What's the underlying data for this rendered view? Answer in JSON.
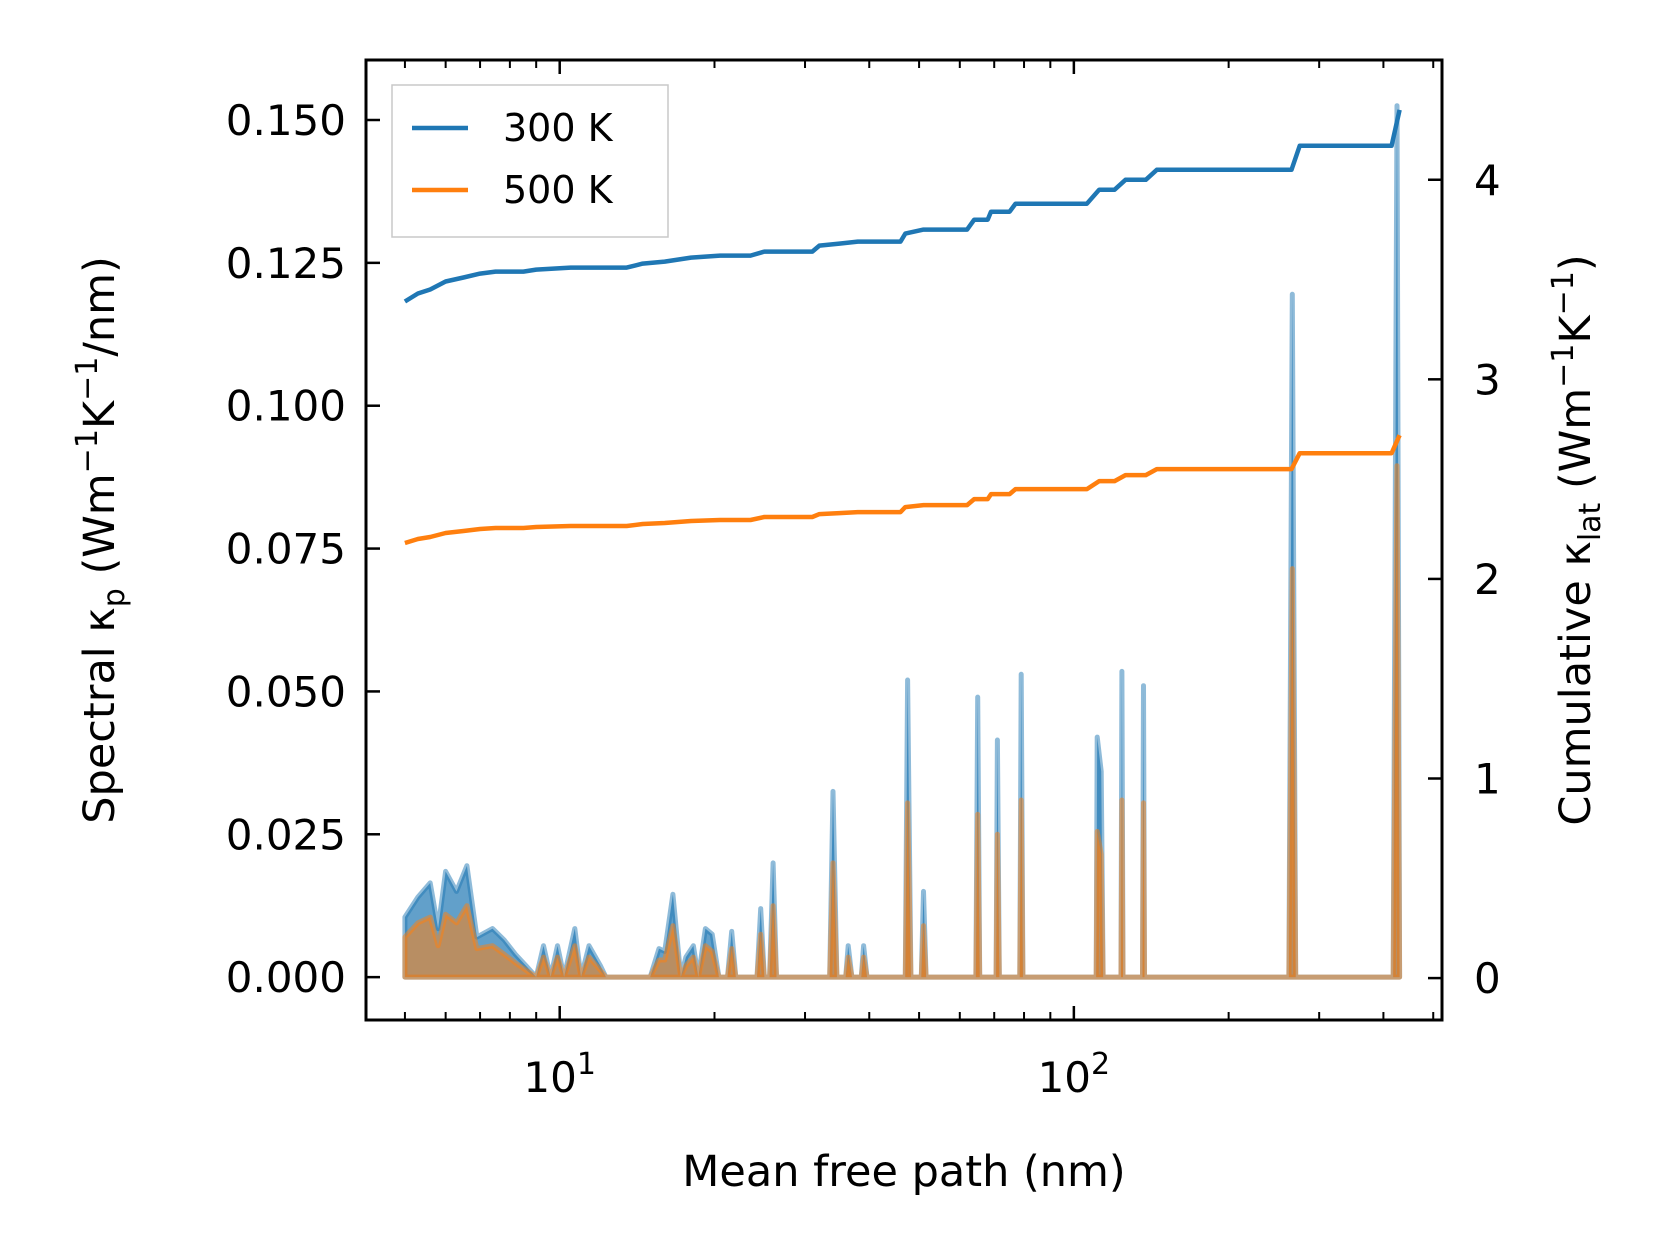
{
  "chart_data": {
    "type": "line",
    "xlabel": "Mean free path (nm)",
    "xscale": "log",
    "xlim": [
      4.2,
      520
    ],
    "ylabel_left": "Spectral κp (Wm−1K−1/nm)",
    "ylabel_left_parts": {
      "pre": "Spectral κ",
      "sub": "p",
      "mid1": " (Wm",
      "sup1": "−1",
      "mid2": "K",
      "sup2": "−1",
      "post": "/nm)"
    },
    "ylim_left": [
      -0.0075,
      0.1605
    ],
    "ylabel_right": "Cumulative κlat (Wm−1K−1)",
    "ylabel_right_parts": {
      "pre": "Cumulative κ",
      "sub": "lat",
      "mid1": " (Wm",
      "sup1": "−1",
      "mid2": "K",
      "sup2": "−1",
      "post": ")"
    },
    "ylim_right": [
      -0.21,
      4.6
    ],
    "left_ticks": [
      {
        "value": 0.0,
        "label": "0.000"
      },
      {
        "value": 0.025,
        "label": "0.025"
      },
      {
        "value": 0.05,
        "label": "0.050"
      },
      {
        "value": 0.075,
        "label": "0.075"
      },
      {
        "value": 0.1,
        "label": "0.100"
      },
      {
        "value": 0.125,
        "label": "0.125"
      },
      {
        "value": 0.15,
        "label": "0.150"
      }
    ],
    "right_ticks": [
      {
        "value": 0,
        "label": "0"
      },
      {
        "value": 1,
        "label": "1"
      },
      {
        "value": 2,
        "label": "2"
      },
      {
        "value": 3,
        "label": "3"
      },
      {
        "value": 4,
        "label": "4"
      }
    ],
    "x_major_ticks": [
      {
        "value": 10,
        "base": "10",
        "exp": "1"
      },
      {
        "value": 100,
        "base": "10",
        "exp": "2"
      }
    ],
    "legend": {
      "position": "top-left",
      "entries": [
        {
          "label": "300 K",
          "color": "#1f77b4"
        },
        {
          "label": "500 K",
          "color": "#ff7f0e"
        }
      ]
    },
    "series": [
      {
        "name": "300 K",
        "color": "#1f77b4",
        "cumulative": [
          [
            5.0,
            3.39
          ],
          [
            5.3,
            3.43
          ],
          [
            5.6,
            3.45
          ],
          [
            6.0,
            3.49
          ],
          [
            6.5,
            3.51
          ],
          [
            7.0,
            3.53
          ],
          [
            7.5,
            3.54
          ],
          [
            8.5,
            3.54
          ],
          [
            9.0,
            3.55
          ],
          [
            10.5,
            3.56
          ],
          [
            13.5,
            3.56
          ],
          [
            14.5,
            3.58
          ],
          [
            16.0,
            3.59
          ],
          [
            18.0,
            3.61
          ],
          [
            20.5,
            3.62
          ],
          [
            23.5,
            3.62
          ],
          [
            25.0,
            3.64
          ],
          [
            31.0,
            3.64
          ],
          [
            32.0,
            3.67
          ],
          [
            35.0,
            3.68
          ],
          [
            38.0,
            3.69
          ],
          [
            46.0,
            3.69
          ],
          [
            47.0,
            3.73
          ],
          [
            51.0,
            3.75
          ],
          [
            62.0,
            3.75
          ],
          [
            64.0,
            3.8
          ],
          [
            68.0,
            3.8
          ],
          [
            69.0,
            3.84
          ],
          [
            75.0,
            3.84
          ],
          [
            77.0,
            3.88
          ],
          [
            106.0,
            3.88
          ],
          [
            112.0,
            3.95
          ],
          [
            120.0,
            3.95
          ],
          [
            126.0,
            4.0
          ],
          [
            138.0,
            4.0
          ],
          [
            145.0,
            4.05
          ],
          [
            265.0,
            4.05
          ],
          [
            275.0,
            4.17
          ],
          [
            415.0,
            4.17
          ],
          [
            430.0,
            4.35
          ]
        ],
        "spectral": [
          [
            5.0,
            0.0105
          ],
          [
            5.3,
            0.014
          ],
          [
            5.6,
            0.0165
          ],
          [
            5.8,
            0.0085
          ],
          [
            6.0,
            0.0185
          ],
          [
            6.3,
            0.015
          ],
          [
            6.6,
            0.0195
          ],
          [
            6.9,
            0.007
          ],
          [
            7.4,
            0.0085
          ],
          [
            7.8,
            0.0065
          ],
          [
            8.2,
            0.004
          ],
          [
            8.6,
            0.002
          ],
          [
            9.0,
            0.0
          ],
          [
            9.3,
            0.0055
          ],
          [
            9.6,
            0.0
          ],
          [
            9.9,
            0.0055
          ],
          [
            10.2,
            0.0
          ],
          [
            10.7,
            0.0085
          ],
          [
            11.0,
            0.0
          ],
          [
            11.4,
            0.0055
          ],
          [
            12.0,
            0.002
          ],
          [
            12.3,
            0.0
          ],
          [
            15.0,
            0.0
          ],
          [
            15.6,
            0.005
          ],
          [
            16.0,
            0.0045
          ],
          [
            16.6,
            0.0145
          ],
          [
            17.2,
            0.0
          ],
          [
            17.6,
            0.0035
          ],
          [
            18.2,
            0.0055
          ],
          [
            18.6,
            0.0
          ],
          [
            19.2,
            0.0085
          ],
          [
            19.8,
            0.0075
          ],
          [
            20.4,
            0.0
          ],
          [
            21.2,
            0.0
          ],
          [
            21.6,
            0.008
          ],
          [
            22.0,
            0.0
          ],
          [
            24.2,
            0.0
          ],
          [
            24.6,
            0.012
          ],
          [
            25.0,
            0.0
          ],
          [
            25.6,
            0.0
          ],
          [
            26.0,
            0.02
          ],
          [
            26.4,
            0.0
          ],
          [
            33.5,
            0.0
          ],
          [
            34.0,
            0.0325
          ],
          [
            34.6,
            0.0
          ],
          [
            36.0,
            0.0
          ],
          [
            36.4,
            0.0055
          ],
          [
            37.0,
            0.0
          ],
          [
            38.6,
            0.0
          ],
          [
            39.0,
            0.0055
          ],
          [
            39.6,
            0.0
          ],
          [
            47.0,
            0.0
          ],
          [
            47.5,
            0.052
          ],
          [
            48.2,
            0.0
          ],
          [
            50.5,
            0.0
          ],
          [
            51.0,
            0.015
          ],
          [
            51.6,
            0.0
          ],
          [
            64.5,
            0.0
          ],
          [
            65.0,
            0.049
          ],
          [
            65.6,
            0.0
          ],
          [
            70.6,
            0.0
          ],
          [
            71.0,
            0.0415
          ],
          [
            71.6,
            0.0
          ],
          [
            78.5,
            0.0
          ],
          [
            79.0,
            0.053
          ],
          [
            79.6,
            0.0
          ],
          [
            110.5,
            0.0
          ],
          [
            111.0,
            0.042
          ],
          [
            113.0,
            0.036
          ],
          [
            114.0,
            0.0
          ],
          [
            123.5,
            0.0
          ],
          [
            124.0,
            0.0535
          ],
          [
            124.6,
            0.0
          ],
          [
            136.0,
            0.0
          ],
          [
            136.6,
            0.051
          ],
          [
            137.2,
            0.0
          ],
          [
            262.0,
            0.0
          ],
          [
            266.0,
            0.1195
          ],
          [
            270.0,
            0.0
          ],
          [
            418.0,
            0.0
          ],
          [
            425.0,
            0.1525
          ],
          [
            430.0,
            0.0
          ]
        ]
      },
      {
        "name": "500 K",
        "color": "#ff7f0e",
        "cumulative": [
          [
            5.0,
            2.18
          ],
          [
            5.3,
            2.2
          ],
          [
            5.6,
            2.21
          ],
          [
            6.0,
            2.23
          ],
          [
            6.5,
            2.24
          ],
          [
            7.0,
            2.25
          ],
          [
            7.5,
            2.255
          ],
          [
            8.5,
            2.255
          ],
          [
            9.0,
            2.26
          ],
          [
            10.5,
            2.265
          ],
          [
            13.5,
            2.265
          ],
          [
            14.5,
            2.275
          ],
          [
            16.0,
            2.28
          ],
          [
            18.0,
            2.29
          ],
          [
            20.5,
            2.295
          ],
          [
            23.5,
            2.295
          ],
          [
            25.0,
            2.31
          ],
          [
            31.0,
            2.31
          ],
          [
            32.0,
            2.325
          ],
          [
            35.0,
            2.33
          ],
          [
            38.0,
            2.335
          ],
          [
            46.0,
            2.335
          ],
          [
            47.0,
            2.36
          ],
          [
            51.0,
            2.37
          ],
          [
            62.0,
            2.37
          ],
          [
            64.0,
            2.4
          ],
          [
            68.0,
            2.4
          ],
          [
            69.0,
            2.425
          ],
          [
            75.0,
            2.425
          ],
          [
            77.0,
            2.45
          ],
          [
            106.0,
            2.45
          ],
          [
            112.0,
            2.49
          ],
          [
            120.0,
            2.49
          ],
          [
            126.0,
            2.52
          ],
          [
            138.0,
            2.52
          ],
          [
            145.0,
            2.55
          ],
          [
            265.0,
            2.55
          ],
          [
            275.0,
            2.63
          ],
          [
            415.0,
            2.63
          ],
          [
            430.0,
            2.72
          ]
        ],
        "spectral": [
          [
            5.0,
            0.007
          ],
          [
            5.3,
            0.0095
          ],
          [
            5.6,
            0.0105
          ],
          [
            5.8,
            0.0055
          ],
          [
            6.0,
            0.011
          ],
          [
            6.3,
            0.0095
          ],
          [
            6.6,
            0.0125
          ],
          [
            6.9,
            0.005
          ],
          [
            7.4,
            0.0055
          ],
          [
            7.8,
            0.004
          ],
          [
            8.2,
            0.0025
          ],
          [
            8.6,
            0.0012
          ],
          [
            9.0,
            0.0
          ],
          [
            9.3,
            0.0035
          ],
          [
            9.6,
            0.0
          ],
          [
            9.9,
            0.0035
          ],
          [
            10.2,
            0.0
          ],
          [
            10.7,
            0.0055
          ],
          [
            11.0,
            0.0
          ],
          [
            11.4,
            0.0035
          ],
          [
            12.0,
            0.0012
          ],
          [
            12.3,
            0.0
          ],
          [
            15.0,
            0.0
          ],
          [
            15.6,
            0.003
          ],
          [
            16.0,
            0.003
          ],
          [
            16.6,
            0.009
          ],
          [
            17.2,
            0.0
          ],
          [
            17.6,
            0.002
          ],
          [
            18.2,
            0.0035
          ],
          [
            18.6,
            0.0
          ],
          [
            19.2,
            0.0055
          ],
          [
            19.8,
            0.0045
          ],
          [
            20.4,
            0.0
          ],
          [
            21.2,
            0.0
          ],
          [
            21.6,
            0.005
          ],
          [
            22.0,
            0.0
          ],
          [
            24.2,
            0.0
          ],
          [
            24.6,
            0.0075
          ],
          [
            25.0,
            0.0
          ],
          [
            25.6,
            0.0
          ],
          [
            26.0,
            0.0125
          ],
          [
            26.4,
            0.0
          ],
          [
            33.5,
            0.0
          ],
          [
            34.0,
            0.02
          ],
          [
            34.6,
            0.0
          ],
          [
            36.0,
            0.0
          ],
          [
            36.4,
            0.0035
          ],
          [
            37.0,
            0.0
          ],
          [
            38.6,
            0.0
          ],
          [
            39.0,
            0.0035
          ],
          [
            39.6,
            0.0
          ],
          [
            47.0,
            0.0
          ],
          [
            47.5,
            0.0305
          ],
          [
            48.2,
            0.0
          ],
          [
            50.5,
            0.0
          ],
          [
            51.0,
            0.009
          ],
          [
            51.6,
            0.0
          ],
          [
            64.5,
            0.0
          ],
          [
            65.0,
            0.0285
          ],
          [
            65.6,
            0.0
          ],
          [
            70.6,
            0.0
          ],
          [
            71.0,
            0.025
          ],
          [
            71.6,
            0.0
          ],
          [
            78.5,
            0.0
          ],
          [
            79.0,
            0.031
          ],
          [
            79.6,
            0.0
          ],
          [
            110.5,
            0.0
          ],
          [
            111.0,
            0.0255
          ],
          [
            113.0,
            0.0215
          ],
          [
            114.0,
            0.0
          ],
          [
            123.5,
            0.0
          ],
          [
            124.0,
            0.031
          ],
          [
            124.6,
            0.0
          ],
          [
            136.0,
            0.0
          ],
          [
            136.6,
            0.0305
          ],
          [
            137.2,
            0.0
          ],
          [
            262.0,
            0.0
          ],
          [
            266.0,
            0.0715
          ],
          [
            270.0,
            0.0
          ],
          [
            418.0,
            0.0
          ],
          [
            425.0,
            0.0895
          ],
          [
            430.0,
            0.0
          ]
        ]
      }
    ]
  }
}
